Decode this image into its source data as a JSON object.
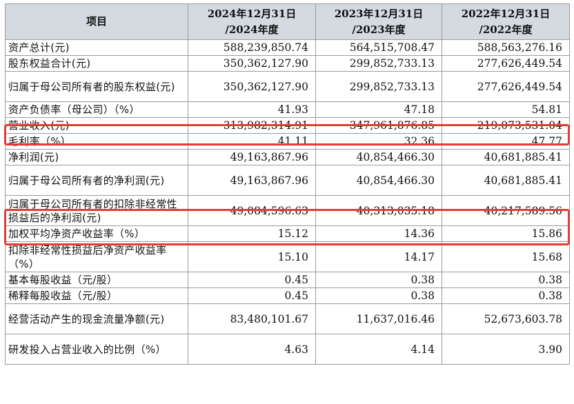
{
  "header": {
    "item": "项目",
    "col2024": [
      "2024年12月31日",
      "/2024年度"
    ],
    "col2023": [
      "2023年12月31日",
      "/2023年度"
    ],
    "col2022": [
      "2022年12月31日",
      "/2022年度"
    ]
  },
  "rows": [
    {
      "label": "资产总计(元)",
      "v2024": "588,239,850.74",
      "v2023": "564,515,708.47",
      "v2022": "588,563,276.16"
    },
    {
      "label": "股东权益合计(元)",
      "v2024": "350,362,127.90",
      "v2023": "299,852,733.13",
      "v2022": "277,626,449.54"
    },
    {
      "label": "归属于母公司所有者的股东权益(元)",
      "v2024": "350,362,127.90",
      "v2023": "299,852,733.13",
      "v2022": "277,626,449.54"
    },
    {
      "label": "资产负债率（母公司）（%）",
      "v2024": "41.93",
      "v2023": "47.18",
      "v2022": "54.81"
    },
    {
      "label": "营业收入(元)",
      "v2024": "313,982,314.91",
      "v2023": "347,961,876.85",
      "v2022": "219,073,531.04"
    },
    {
      "label": "毛利率（%）",
      "v2024": "41.11",
      "v2023": "32.36",
      "v2022": "47.77"
    },
    {
      "label": "净利润(元)",
      "v2024": "49,163,867.96",
      "v2023": "40,854,466.30",
      "v2022": "40,681,885.41"
    },
    {
      "label": "归属于母公司所有者的净利润(元)",
      "v2024": "49,163,867.96",
      "v2023": "40,854,466.30",
      "v2022": "40,681,885.41"
    },
    {
      "label": "归属于母公司所有者的扣除非经常性损益后的净利润(元)",
      "v2024": "49,084,596.63",
      "v2023": "40,313,035.18",
      "v2022": "40,217,589.56"
    },
    {
      "label": "加权平均净资产收益率（%）",
      "v2024": "15.12",
      "v2023": "14.36",
      "v2022": "15.86"
    },
    {
      "label": "扣除非经常性损益后净资产收益率（%）",
      "v2024": "15.10",
      "v2023": "14.17",
      "v2022": "15.68"
    },
    {
      "label": "基本每股收益（元/股）",
      "v2024": "0.45",
      "v2023": "0.38",
      "v2022": "0.38"
    },
    {
      "label": "稀释每股收益（元/股）",
      "v2024": "0.45",
      "v2023": "0.38",
      "v2022": "0.38"
    },
    {
      "label": "经营活动产生的现金流量净额(元)",
      "v2024": "83,480,101.67",
      "v2023": "11,637,016.46",
      "v2022": "52,673,603.78"
    },
    {
      "label": "研发投入占营业收入的比例（%）",
      "v2024": "4.63",
      "v2023": "4.14",
      "v2022": "3.90"
    }
  ],
  "highlighted_rows": [
    "营业收入(元)",
    "归属于母公司所有者的扣除非经常性损益后的净利润(元)"
  ],
  "highlight_color": "#e53935",
  "header_bg": "#d5d9e0"
}
